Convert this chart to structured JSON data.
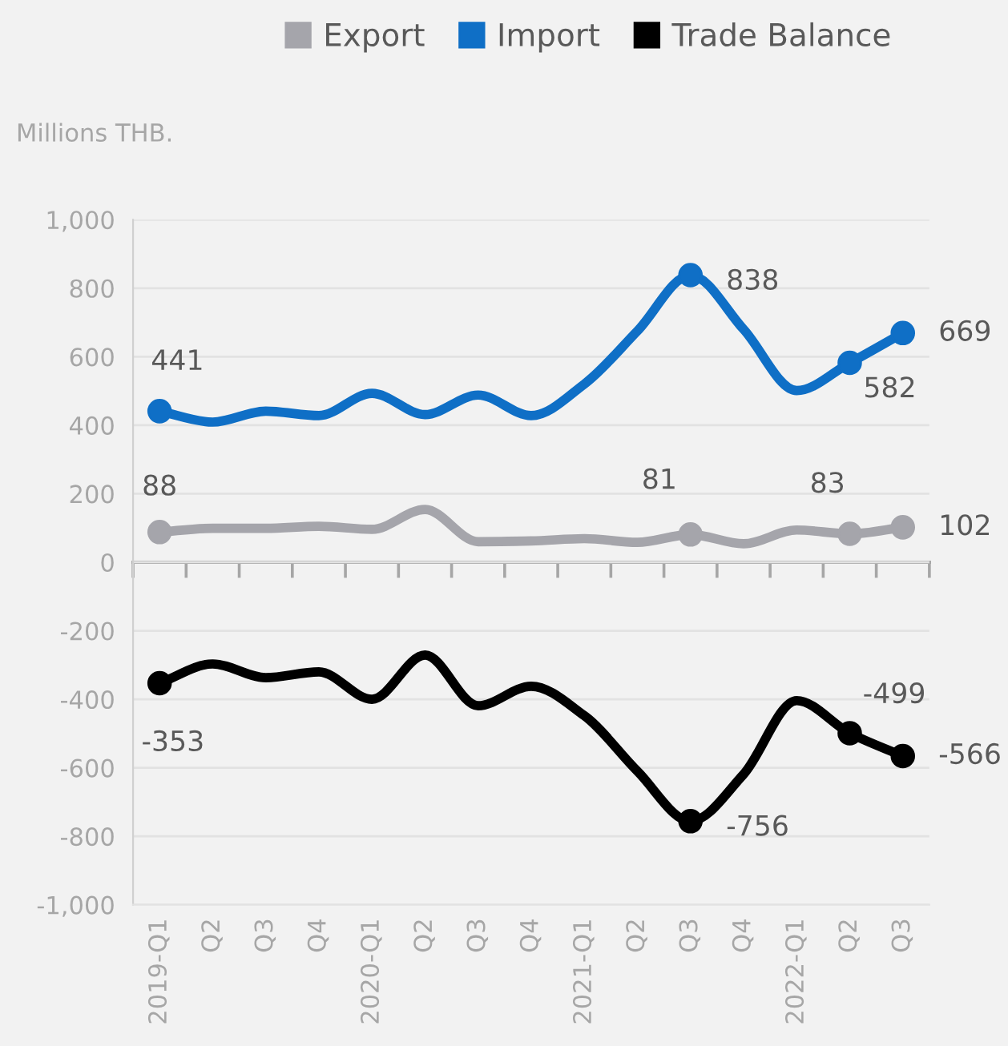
{
  "chart_data": {
    "type": "line",
    "ylabel": "Millions THB.",
    "categories": [
      "2019-Q1",
      "Q2",
      "Q3",
      "Q4",
      "2020-Q1",
      "Q2",
      "Q3",
      "Q4",
      "2021-Q1",
      "Q2",
      "Q3",
      "Q4",
      "2022-Q1",
      "Q2",
      "Q3"
    ],
    "series": [
      {
        "name": "Export",
        "color": "#a5a5ab",
        "values": [
          88,
          99,
          99,
          105,
          96,
          154,
          60,
          62,
          69,
          58,
          81,
          54,
          94,
          83,
          102
        ],
        "value_labels": [
          "88",
          null,
          null,
          null,
          null,
          null,
          null,
          null,
          null,
          null,
          "81",
          null,
          null,
          "83",
          "102"
        ]
      },
      {
        "name": "Import",
        "color": "#0f6fc6",
        "values": [
          441,
          409,
          441,
          428,
          493,
          431,
          488,
          428,
          520,
          675,
          838,
          680,
          501,
          582,
          669
        ],
        "value_labels": [
          "441",
          null,
          null,
          null,
          null,
          null,
          null,
          null,
          null,
          null,
          "838",
          null,
          null,
          "582",
          "669"
        ]
      },
      {
        "name": "Trade Balance",
        "color": "#000000",
        "values": [
          -353,
          -297,
          -337,
          -320,
          -400,
          -271,
          -419,
          -362,
          -448,
          -610,
          -756,
          -619,
          -404,
          -499,
          -566
        ],
        "value_labels": [
          "-353",
          null,
          null,
          null,
          null,
          null,
          null,
          null,
          null,
          null,
          "-756",
          null,
          null,
          "-499",
          "-566"
        ]
      }
    ],
    "ylim": [
      -1000,
      1000
    ],
    "yticks": [
      {
        "value": -1000,
        "label": "-1,000"
      },
      -800,
      -600,
      -400,
      -200,
      0,
      200,
      400,
      600,
      800,
      {
        "value": 1000,
        "label": "1,000"
      }
    ],
    "grid": "y",
    "legend": "top",
    "line_style": "solid"
  }
}
